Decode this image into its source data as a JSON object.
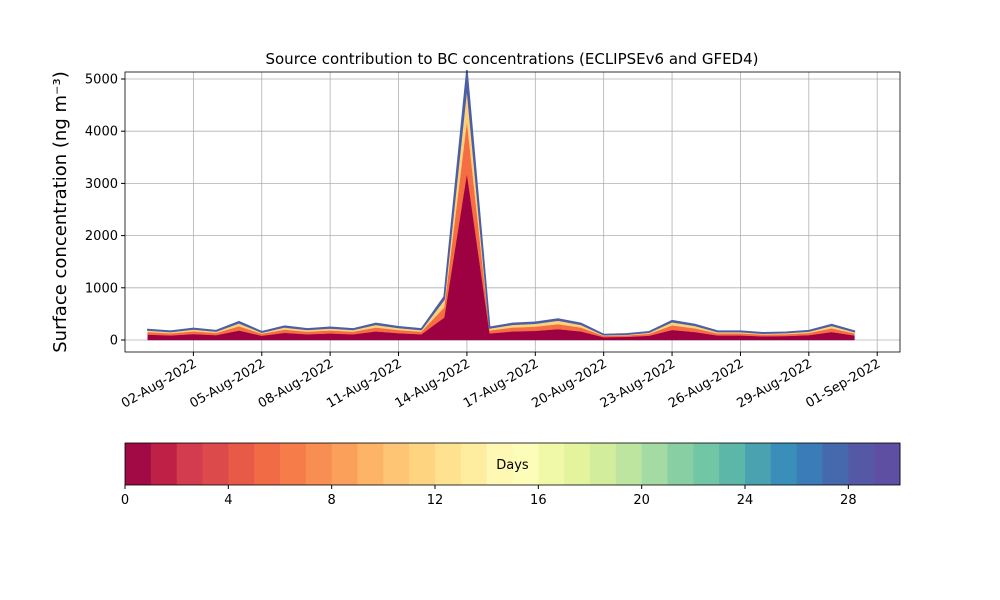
{
  "chart_data": [
    {
      "type": "stacked_area",
      "title": "Source contribution to BC concentrations (ECLIPSEv6 and GFED4)",
      "y_label": "Surface concentration (ng m⁻³)",
      "x": [
        "2022-07-31",
        "2022-08-01",
        "2022-08-02",
        "2022-08-03",
        "2022-08-04",
        "2022-08-05",
        "2022-08-06",
        "2022-08-07",
        "2022-08-08",
        "2022-08-09",
        "2022-08-10",
        "2022-08-11",
        "2022-08-12",
        "2022-08-13",
        "2022-08-14",
        "2022-08-15",
        "2022-08-16",
        "2022-08-17",
        "2022-08-18",
        "2022-08-19",
        "2022-08-20",
        "2022-08-21",
        "2022-08-22",
        "2022-08-23",
        "2022-08-24",
        "2022-08-25",
        "2022-08-26",
        "2022-08-27",
        "2022-08-28",
        "2022-08-29",
        "2022-08-30",
        "2022-08-31"
      ],
      "series": [
        {
          "color": "#9e0142",
          "values": [
            105,
            88,
            116,
            94,
            182,
            83,
            138,
            110,
            127,
            110,
            165,
            132,
            110,
            429,
            3200,
            127,
            165,
            176,
            209,
            165,
            55,
            61,
            83,
            193,
            154,
            88,
            88,
            72,
            77,
            94,
            154,
            88
          ]
        },
        {
          "color": "#f46d43",
          "values": [
            48,
            40,
            52,
            42,
            82,
            38,
            62,
            50,
            58,
            50,
            75,
            60,
            50,
            195,
            1000,
            58,
            75,
            80,
            95,
            75,
            25,
            28,
            38,
            88,
            70,
            40,
            40,
            33,
            35,
            42,
            70,
            40
          ]
        },
        {
          "color": "#fdd07a",
          "values": [
            37,
            32,
            42,
            34,
            66,
            29,
            50,
            40,
            45,
            40,
            60,
            48,
            40,
            156,
            680,
            45,
            60,
            64,
            76,
            60,
            20,
            21,
            29,
            69,
            56,
            32,
            32,
            25,
            28,
            34,
            56,
            32
          ]
        },
        {
          "color": "#4a5fa8",
          "values": [
            11,
            10,
            13,
            10,
            20,
            9,
            15,
            12,
            14,
            12,
            18,
            14,
            12,
            47,
            290,
            14,
            18,
            19,
            23,
            18,
            6,
            7,
            9,
            21,
            17,
            10,
            10,
            8,
            8,
            10,
            17,
            10
          ]
        }
      ],
      "xlim": [
        "2022-07-30",
        "2022-09-02"
      ],
      "xticks": [
        {
          "value": "2022-08-02",
          "label": "02-Aug-2022"
        },
        {
          "value": "2022-08-05",
          "label": "05-Aug-2022"
        },
        {
          "value": "2022-08-08",
          "label": "08-Aug-2022"
        },
        {
          "value": "2022-08-11",
          "label": "11-Aug-2022"
        },
        {
          "value": "2022-08-14",
          "label": "14-Aug-2022"
        },
        {
          "value": "2022-08-17",
          "label": "17-Aug-2022"
        },
        {
          "value": "2022-08-20",
          "label": "20-Aug-2022"
        },
        {
          "value": "2022-08-23",
          "label": "23-Aug-2022"
        },
        {
          "value": "2022-08-26",
          "label": "26-Aug-2022"
        },
        {
          "value": "2022-08-29",
          "label": "29-Aug-2022"
        },
        {
          "value": "2022-09-01",
          "label": "01-Sep-2022"
        }
      ],
      "ylim": [
        -230,
        5134
      ],
      "yticks": [
        0,
        1000,
        2000,
        3000,
        4000,
        5000
      ],
      "grid": true
    },
    {
      "type": "colorbar",
      "label": "Days",
      "clim": [
        0,
        30
      ],
      "ticks": [
        0,
        4,
        8,
        12,
        16,
        20,
        24,
        28
      ],
      "colors": [
        "#a10a44",
        "#be2046",
        "#d33c4e",
        "#dc4a4c",
        "#e75a47",
        "#f16c44",
        "#f67c4a",
        "#f98e52",
        "#fba05b",
        "#fdb466",
        "#fdc574",
        "#fed481",
        "#fee290",
        "#feed9f",
        "#fff8b4",
        "#fbfdb9",
        "#f0f9a8",
        "#e3f49d",
        "#d2ed9b",
        "#bde5a0",
        "#a4daa4",
        "#88cfa4",
        "#71c6a5",
        "#5db7a9",
        "#4aa2b1",
        "#3a8eba",
        "#3a7cb8",
        "#4669ad",
        "#5558a5",
        "#5e4fa2"
      ]
    }
  ]
}
